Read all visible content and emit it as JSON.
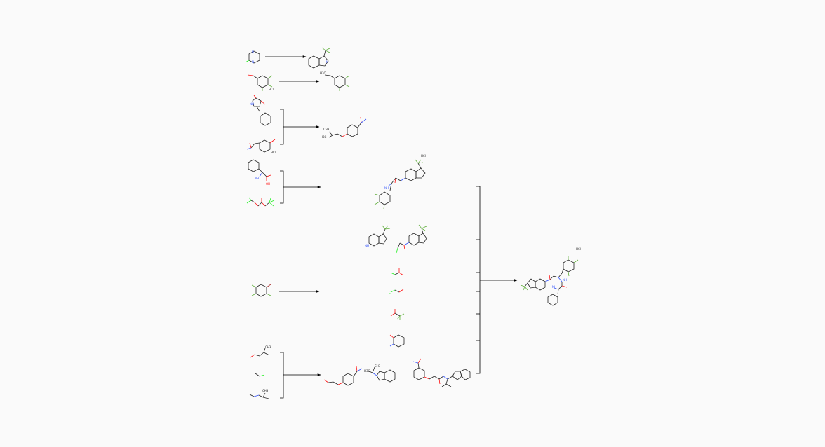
{
  "colors": {
    "background": "#fafafa",
    "bond": "#1a1a1a",
    "nitrogen": "#3050f8",
    "oxygen": "#ff0d0d",
    "fluorine": "#5fae3a",
    "chlorine": "#1ff01f",
    "arrow": "#000000"
  },
  "labels": {
    "salt_a": "HCl",
    "salt_b": "HCl",
    "salt_c": "HCl",
    "salt_final": "HCl",
    "atoms": {
      "n": "N",
      "o": "O",
      "f": "F",
      "cl": "Cl",
      "nh": "NH",
      "nh2": "NH",
      "oh": "OH",
      "h3c": "H3C",
      "ch3": "CH3"
    }
  },
  "steps": [
    {
      "name": "step-1",
      "type": "single"
    },
    {
      "name": "step-2",
      "type": "single"
    },
    {
      "name": "step-3",
      "type": "bracket"
    },
    {
      "name": "step-4",
      "type": "bracket"
    },
    {
      "name": "step-5",
      "type": "single"
    },
    {
      "name": "step-6",
      "type": "bracket"
    },
    {
      "name": "final-step",
      "type": "bracket"
    }
  ]
}
